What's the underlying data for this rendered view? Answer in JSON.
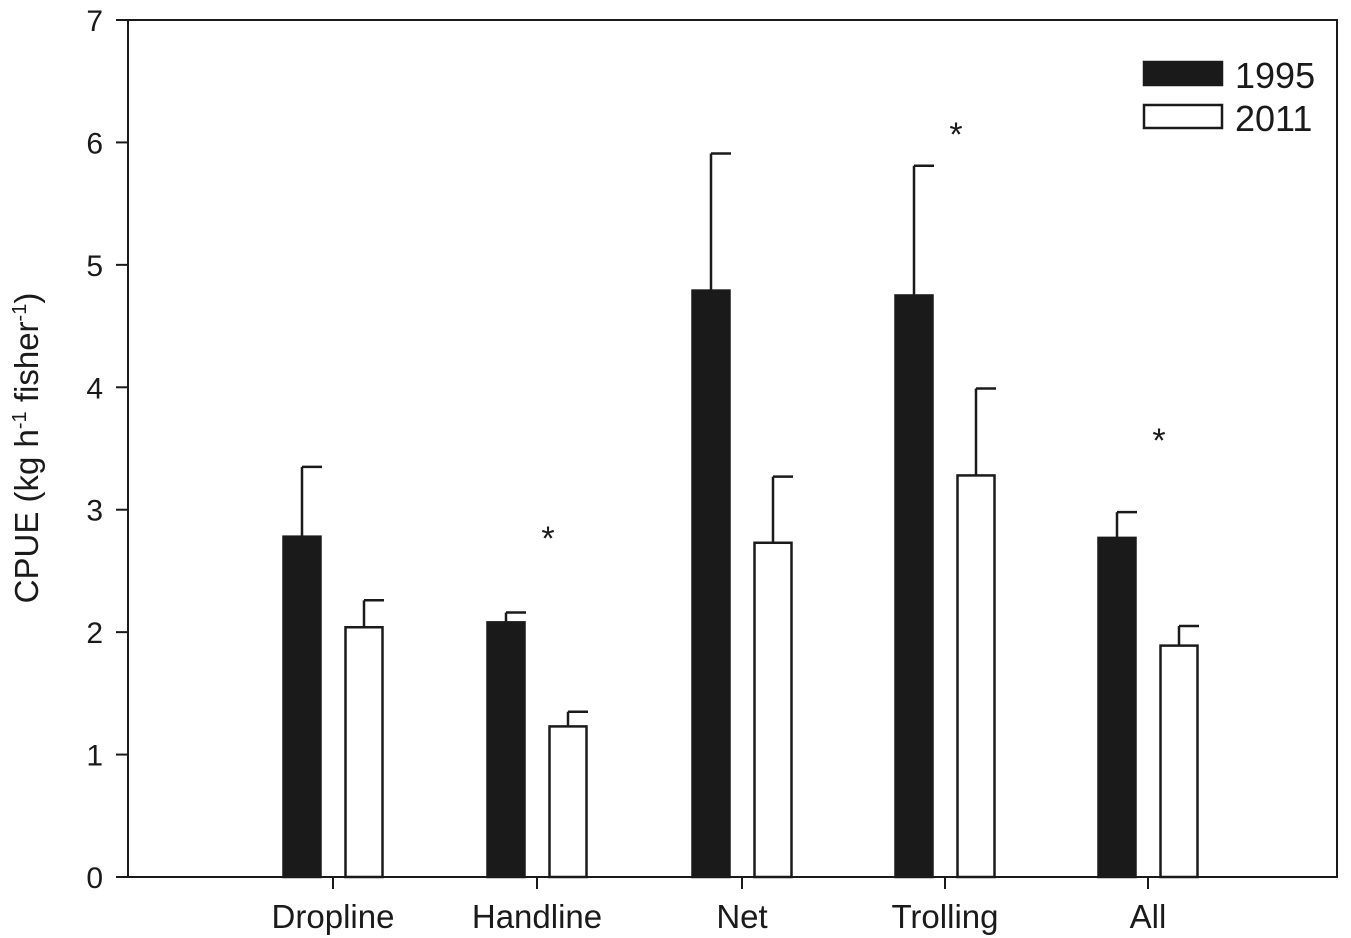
{
  "chart_data": {
    "type": "bar",
    "title": "",
    "xlabel": "",
    "ylabel": {
      "parts": [
        "CPUE (kg h",
        "-1",
        " fisher",
        "-1",
        ")"
      ]
    },
    "ylim": [
      0,
      7
    ],
    "yticks": [
      0,
      1,
      2,
      3,
      4,
      5,
      6,
      7
    ],
    "categories": [
      "Dropline",
      "Handline",
      "Net",
      "Trolling",
      "All"
    ],
    "series": [
      {
        "name": "1995",
        "fill": "#1a1a1a",
        "values": [
          2.78,
          2.08,
          4.79,
          4.75,
          2.77
        ],
        "error_upper": [
          3.35,
          2.16,
          5.91,
          5.81,
          2.98
        ]
      },
      {
        "name": "2011",
        "fill": "#ffffff",
        "values": [
          2.04,
          1.23,
          2.73,
          3.28,
          1.89
        ],
        "error_upper": [
          2.26,
          1.35,
          3.27,
          3.99,
          2.05
        ]
      }
    ],
    "significance": [
      {
        "category": "Handline",
        "label": "*",
        "y": 2.85
      },
      {
        "category": "Trolling",
        "label": "*",
        "y": 6.15
      },
      {
        "category": "All",
        "label": "*",
        "y": 3.65
      }
    ],
    "legend_position": "top-right",
    "grid": false
  }
}
